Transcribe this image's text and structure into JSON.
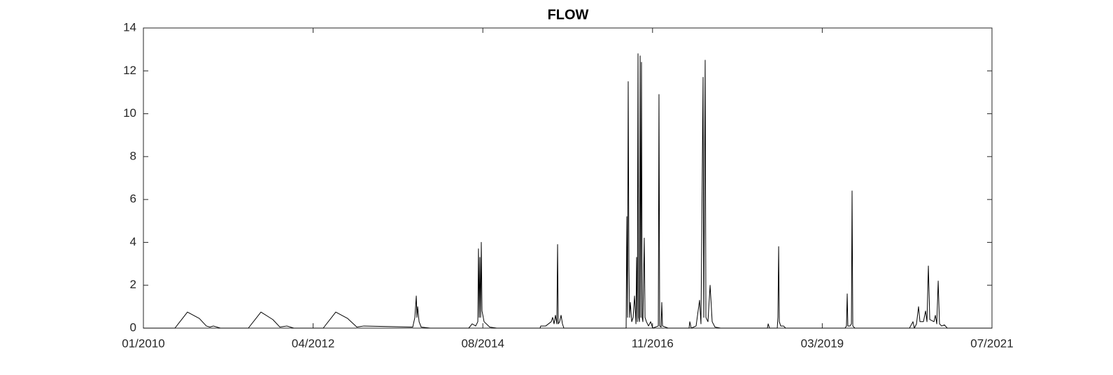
{
  "chart_data": {
    "type": "line",
    "title": "FLOW",
    "color": "#000000",
    "grid": false,
    "box": true,
    "xlim": [
      2010.0,
      2021.5
    ],
    "xticks": [
      {
        "value": 2010.0,
        "label": "01/2010"
      },
      {
        "value": 2012.3,
        "label": "04/2012"
      },
      {
        "value": 2014.6,
        "label": "08/2014"
      },
      {
        "value": 2016.9,
        "label": "11/2016"
      },
      {
        "value": 2019.2,
        "label": "03/2019"
      },
      {
        "value": 2021.5,
        "label": "07/2021"
      }
    ],
    "ylim": [
      0,
      14
    ],
    "yticks": [
      0,
      2,
      4,
      6,
      8,
      10,
      12,
      14
    ],
    "x": [
      2010.0,
      2010.427,
      2010.597,
      2010.758,
      2010.853,
      2010.901,
      2010.948,
      2011.043,
      2011.422,
      2011.593,
      2011.754,
      2011.849,
      2011.944,
      2012.038,
      2012.437,
      2012.607,
      2012.768,
      2012.892,
      2012.987,
      2013.65,
      2013.679,
      2013.698,
      2013.707,
      2013.717,
      2013.736,
      2013.764,
      2013.887,
      2014.409,
      2014.456,
      2014.503,
      2014.532,
      2014.541,
      2014.551,
      2014.56,
      2014.57,
      2014.579,
      2014.589,
      2014.617,
      2014.693,
      2014.788,
      2015.376,
      2015.385,
      2015.452,
      2015.527,
      2015.546,
      2015.565,
      2015.584,
      2015.603,
      2015.613,
      2015.622,
      2015.641,
      2015.66,
      2015.679,
      2015.698,
      2016.542,
      2016.551,
      2016.561,
      2016.57,
      2016.58,
      2016.589,
      2016.599,
      2016.618,
      2016.637,
      2016.656,
      2016.675,
      2016.684,
      2016.694,
      2016.703,
      2016.713,
      2016.722,
      2016.732,
      2016.741,
      2016.75,
      2016.76,
      2016.769,
      2016.788,
      2016.798,
      2016.817,
      2016.845,
      2016.874,
      2016.902,
      2016.978,
      2016.987,
      2016.997,
      2017.016,
      2017.025,
      2017.035,
      2017.111,
      2017.395,
      2017.405,
      2017.424,
      2017.49,
      2017.537,
      2017.556,
      2017.585,
      2017.594,
      2017.613,
      2017.623,
      2017.651,
      2017.68,
      2017.708,
      2017.746,
      2017.822,
      2018.457,
      2018.467,
      2018.486,
      2018.59,
      2018.599,
      2018.609,
      2018.618,
      2018.637,
      2018.675,
      2018.704,
      2019.509,
      2019.528,
      2019.538,
      2019.547,
      2019.576,
      2019.595,
      2019.604,
      2019.614,
      2019.642,
      2020.382,
      2020.429,
      2020.448,
      2020.477,
      2020.505,
      2020.524,
      2020.571,
      2020.6,
      2020.619,
      2020.638,
      2020.657,
      2020.714,
      2020.733,
      2020.752,
      2020.771,
      2020.789,
      2020.818,
      2020.856,
      2020.894,
      2021.5
    ],
    "values": [
      0,
      0,
      0.75,
      0.45,
      0.1,
      0.05,
      0.1,
      0,
      0,
      0.75,
      0.4,
      0.05,
      0.1,
      0,
      0,
      0.75,
      0.45,
      0.05,
      0.1,
      0.05,
      0.5,
      1.5,
      0.5,
      1.0,
      0.3,
      0.05,
      0,
      0,
      0.2,
      0.1,
      0.3,
      3.7,
      0.5,
      3.3,
      0.5,
      4.0,
      0.8,
      0.3,
      0.05,
      0,
      0,
      0.1,
      0.1,
      0.3,
      0.5,
      0.2,
      0.6,
      0.2,
      3.9,
      0.2,
      0.3,
      0.6,
      0.2,
      0,
      0,
      5.2,
      0.5,
      11.5,
      2.9,
      0.5,
      1.2,
      0.3,
      0.5,
      1.5,
      0.2,
      3.3,
      0.3,
      12.8,
      0.5,
      0.3,
      12.7,
      0.5,
      12.4,
      0.5,
      0.3,
      4.2,
      0.5,
      0.3,
      0.1,
      0.3,
      0,
      0.1,
      10.9,
      0.1,
      0.05,
      1.2,
      0.1,
      0,
      0,
      0.3,
      0,
      0.1,
      1.3,
      0.2,
      11.7,
      0.5,
      12.5,
      0.5,
      0.3,
      2.0,
      0.3,
      0.05,
      0,
      0,
      0.2,
      0,
      0,
      0.5,
      3.8,
      0.3,
      0.1,
      0.1,
      0,
      0,
      0.1,
      1.6,
      0.1,
      0.1,
      0.2,
      6.4,
      0.1,
      0,
      0,
      0.3,
      0,
      0.2,
      1.0,
      0.3,
      0.3,
      0.8,
      0.3,
      2.9,
      0.4,
      0.3,
      0.6,
      0.2,
      2.2,
      0.2,
      0.1,
      0.15,
      0,
      0
    ]
  }
}
